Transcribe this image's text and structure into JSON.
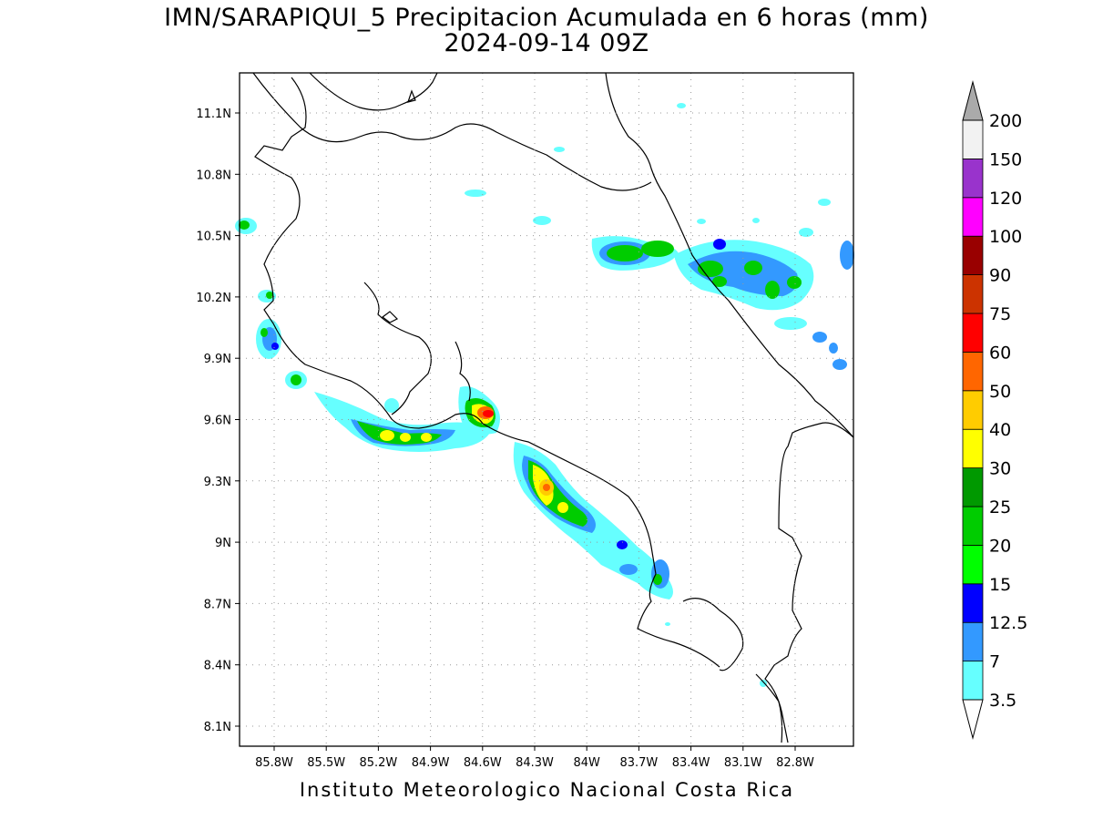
{
  "title": {
    "line1": "IMN/SARAPIQUI_5 Precipitacion Acumulada en 6 horas (mm)",
    "line2": "2024-09-14 09Z"
  },
  "footer": "Instituto Meteorologico Nacional Costa Rica",
  "map": {
    "lat_ticks": [
      "11.1N",
      "10.8N",
      "10.5N",
      "10.2N",
      "9.9N",
      "9.6N",
      "9.3N",
      "9N",
      "8.7N",
      "8.4N",
      "8.1N"
    ],
    "lon_ticks": [
      "85.8W",
      "85.5W",
      "85.2W",
      "84.9W",
      "84.6W",
      "84.3W",
      "84W",
      "83.7W",
      "83.4W",
      "83.1W",
      "82.8W"
    ],
    "grid": "dotted"
  },
  "colorbar": {
    "labels": [
      "3.5",
      "7",
      "12.5",
      "15",
      "20",
      "25",
      "30",
      "40",
      "50",
      "60",
      "75",
      "90",
      "100",
      "120",
      "150",
      "200"
    ],
    "colors": [
      "#ffffff",
      "#66ffff",
      "#3399ff",
      "#0000ff",
      "#00ff00",
      "#00cc00",
      "#009900",
      "#ffff00",
      "#ffcc00",
      "#ff6600",
      "#ff0000",
      "#cc3300",
      "#990000",
      "#ff00ff",
      "#9933cc",
      "#f2f2f2"
    ],
    "upper_arrow_color": "#aaaaaa",
    "lower_arrow_color": "#ffffff"
  }
}
